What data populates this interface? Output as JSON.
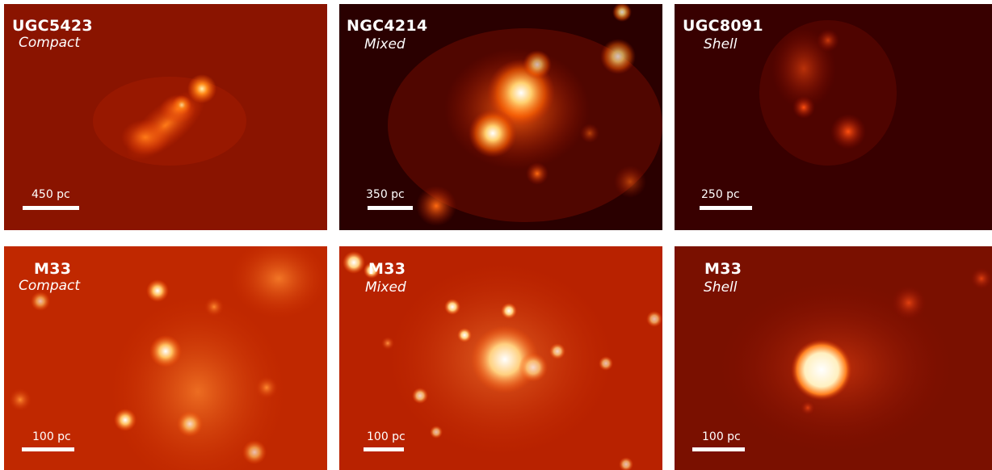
{
  "panels": [
    {
      "name": "UGC5423",
      "type": "Compact",
      "scale": "450 pc"
    },
    {
      "name": "NGC4214",
      "type": "Mixed",
      "scale": "350 pc"
    },
    {
      "name": "UGC8091",
      "type": "Shell",
      "scale": "250 pc"
    },
    {
      "name": "M33",
      "type": "Compact",
      "scale": "100 pc"
    },
    {
      "name": "M33",
      "type": "Mixed",
      "scale": "100 pc"
    },
    {
      "name": "M33",
      "type": "Shell",
      "scale": "100 pc"
    }
  ],
  "colormap": "hot",
  "colors": {
    "dark": "#3a0000",
    "mid": "#b01800",
    "bright": "#ff8a20",
    "peak": "#ffffff"
  }
}
